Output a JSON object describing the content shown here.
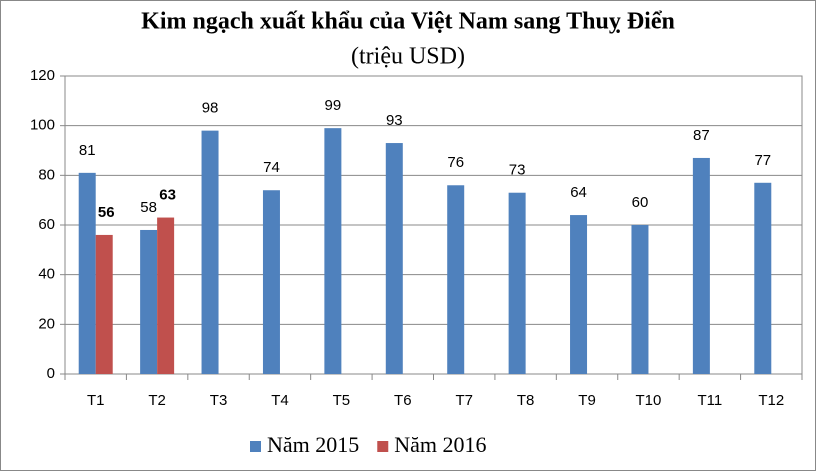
{
  "chart_data": {
    "type": "bar",
    "title": "Kim ngạch xuất khẩu của Việt Nam sang Thuỵ Điển",
    "subtitle": "(triệu USD)",
    "categories": [
      "T1",
      "T2",
      "T3",
      "T4",
      "T5",
      "T6",
      "T7",
      "T8",
      "T9",
      "T10",
      "T11",
      "T12"
    ],
    "series": [
      {
        "name": "Năm 2015",
        "color": "#4f81bd",
        "values": [
          81,
          58,
          98,
          74,
          99,
          93,
          76,
          73,
          64,
          60,
          87,
          77
        ]
      },
      {
        "name": "Năm 2016",
        "color": "#c0504d",
        "values": [
          56,
          63,
          null,
          null,
          null,
          null,
          null,
          null,
          null,
          null,
          null,
          null
        ]
      }
    ],
    "ylim": [
      0,
      120
    ],
    "yticks": [
      0,
      20,
      40,
      60,
      80,
      100,
      120
    ],
    "grid": true,
    "legend": "bottom"
  }
}
